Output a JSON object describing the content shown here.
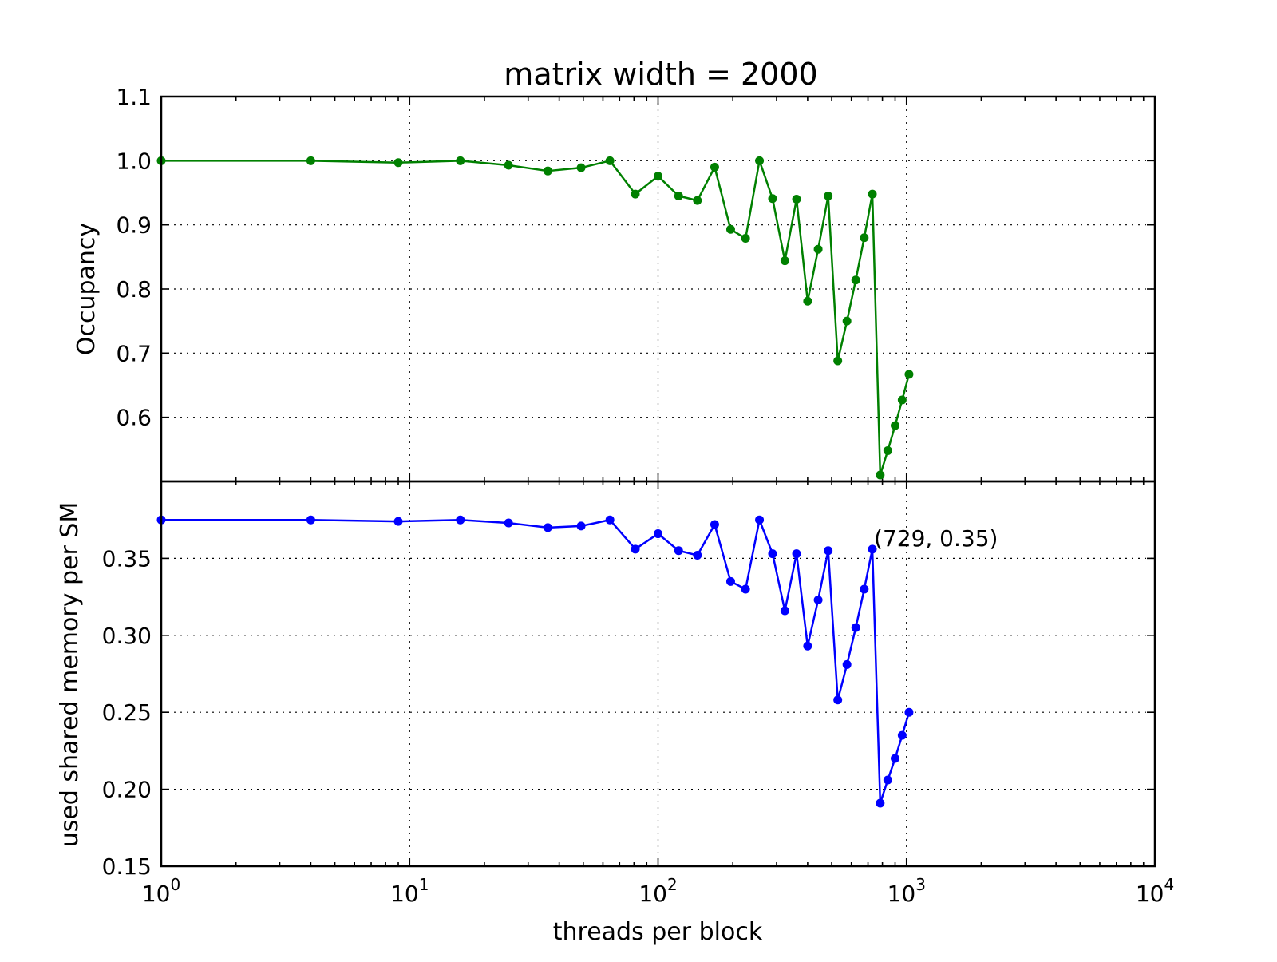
{
  "chart_data": {
    "type": "line",
    "title": "matrix width = 2000",
    "xlabel": "threads per block",
    "xscale": "log",
    "xlim": [
      1,
      10000
    ],
    "x_tick_labels": [
      {
        "value": 1,
        "base": "10",
        "exp": "0"
      },
      {
        "value": 10,
        "base": "10",
        "exp": "1"
      },
      {
        "value": 100,
        "base": "10",
        "exp": "2"
      },
      {
        "value": 1000,
        "base": "10",
        "exp": "3"
      },
      {
        "value": 10000,
        "base": "10",
        "exp": "4"
      }
    ],
    "grid": true,
    "x": [
      1,
      4,
      9,
      16,
      25,
      36,
      49,
      64,
      81,
      100,
      121,
      144,
      169,
      196,
      225,
      256,
      289,
      324,
      361,
      400,
      441,
      484,
      529,
      576,
      625,
      676,
      729,
      784,
      841,
      900,
      961,
      1024
    ],
    "panels": [
      {
        "ylabel": "Occupancy",
        "ylim": [
          0.5,
          1.1
        ],
        "yticks": [
          0.6,
          0.7,
          0.8,
          0.9,
          1.0,
          1.1
        ],
        "ytick_labels": [
          "0.6",
          "0.7",
          "0.8",
          "0.9",
          "1.0",
          "1.1"
        ],
        "series": [
          {
            "color": "#008000",
            "values": [
              1.0,
              1.0,
              0.997,
              1.0,
              0.993,
              0.984,
              0.989,
              1.0,
              0.948,
              0.976,
              0.945,
              0.938,
              0.99,
              0.893,
              0.879,
              1.0,
              0.941,
              0.844,
              0.94,
              0.781,
              0.862,
              0.945,
              0.688,
              0.75,
              0.814,
              0.88,
              0.948,
              0.51,
              0.548,
              0.587,
              0.627,
              0.667
            ]
          }
        ]
      },
      {
        "ylabel": "used shared memory per SM",
        "ylim": [
          0.15,
          0.4
        ],
        "yticks": [
          0.15,
          0.2,
          0.25,
          0.3,
          0.35
        ],
        "ytick_labels": [
          "0.15",
          "0.20",
          "0.25",
          "0.30",
          "0.35"
        ],
        "series": [
          {
            "color": "#0000ff",
            "values": [
              0.375,
              0.375,
              0.374,
              0.375,
              0.373,
              0.37,
              0.371,
              0.375,
              0.356,
              0.366,
              0.355,
              0.352,
              0.372,
              0.335,
              0.33,
              0.375,
              0.353,
              0.316,
              0.353,
              0.293,
              0.323,
              0.355,
              0.258,
              0.281,
              0.305,
              0.33,
              0.356,
              0.191,
              0.206,
              0.22,
              0.235,
              0.25
            ]
          }
        ],
        "annotations": [
          {
            "text": "(729, 0.35)",
            "x": 729,
            "y": 0.356
          }
        ]
      }
    ]
  }
}
